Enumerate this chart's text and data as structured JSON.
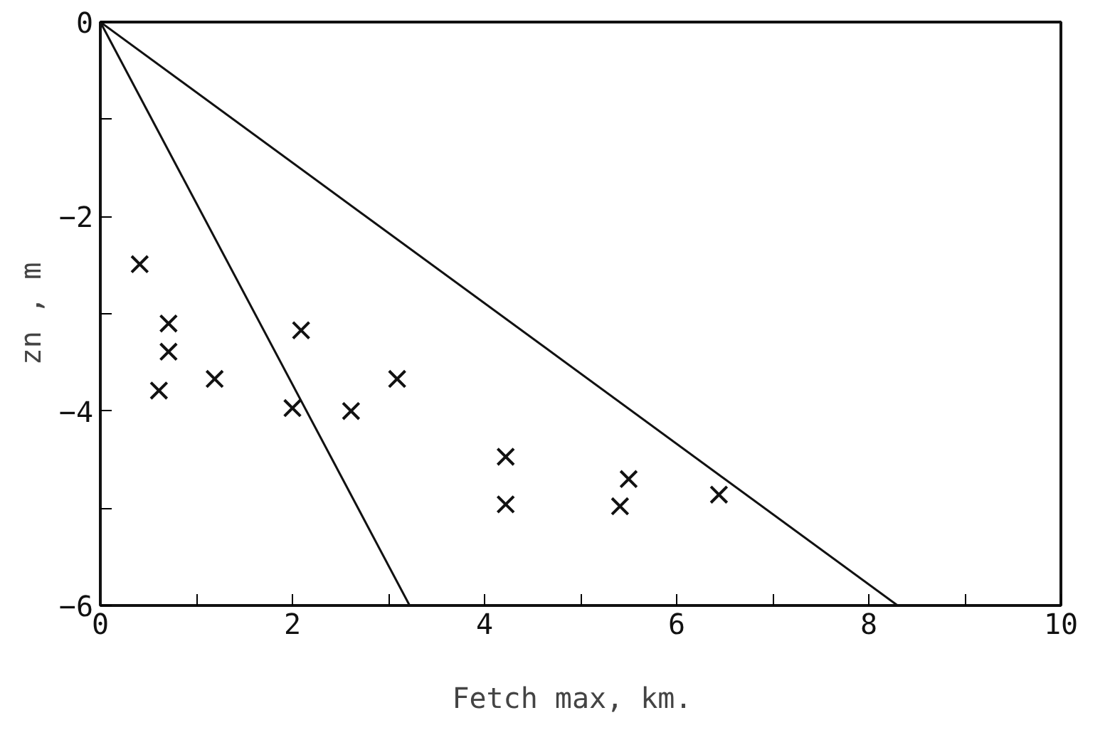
{
  "chart_data": {
    "type": "scatter",
    "xlabel": "Fetch max,  km.",
    "ylabel": "zn , m",
    "grid": false,
    "xlim": [
      0,
      10
    ],
    "ylim": [
      -6,
      0
    ],
    "xticks": [
      0,
      {
        "value": 1,
        "label": null
      },
      2,
      {
        "value": 3,
        "label": null
      },
      4,
      {
        "value": 5,
        "label": null
      },
      6,
      {
        "value": 7,
        "label": null
      },
      8,
      {
        "value": 9,
        "label": null
      },
      10
    ],
    "yticks": [
      -6,
      {
        "value": -5,
        "label": null
      },
      -4,
      {
        "value": -3,
        "label": null
      },
      -2,
      {
        "value": -1,
        "label": null
      },
      0
    ],
    "series": [
      {
        "marker": "cross",
        "color": "#111111",
        "x": [
          0.41,
          0.71,
          0.71,
          0.61,
          1.19,
          2.09,
          2.0,
          2.61,
          3.09,
          4.22,
          4.22,
          5.5,
          5.41,
          6.44
        ],
        "values": [
          -2.49,
          -3.1,
          -3.39,
          -3.79,
          -3.67,
          -3.17,
          -3.97,
          -4.0,
          -3.67,
          -4.47,
          -4.96,
          -4.7,
          -4.98,
          -4.86
        ]
      },
      {
        "type": "line",
        "color": "#111111",
        "x": [
          0,
          3.22
        ],
        "values": [
          0,
          -6
        ]
      },
      {
        "type": "line",
        "color": "#111111",
        "x": [
          0,
          8.3
        ],
        "values": [
          0,
          -6
        ]
      }
    ]
  }
}
